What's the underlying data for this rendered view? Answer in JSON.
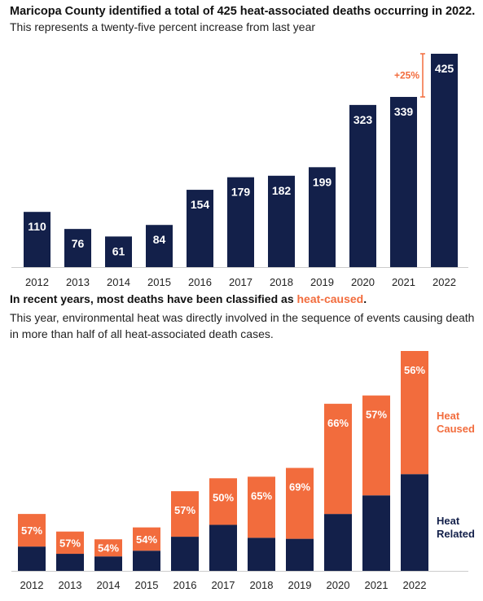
{
  "colors": {
    "navy": "#13204a",
    "orange": "#f26c3d",
    "axis": "#cccccc"
  },
  "chart_data": [
    {
      "type": "bar",
      "title": "Maricopa County identified a total of 425 heat-associated deaths occurring in 2022.",
      "subtitle": "This represents a twenty-five percent increase from last year",
      "categories": [
        "2012",
        "2013",
        "2014",
        "2015",
        "2016",
        "2017",
        "2018",
        "2019",
        "2020",
        "2021",
        "2022"
      ],
      "values": [
        110,
        76,
        61,
        84,
        154,
        179,
        182,
        199,
        323,
        339,
        425
      ],
      "ylim": [
        0,
        440
      ],
      "grid": false,
      "annotation": {
        "text": "+25%",
        "from": 339,
        "to": 425
      }
    },
    {
      "type": "bar",
      "stacked": true,
      "title_prefix": "In recent years, most deaths have been classified as ",
      "title_highlight": "heat-caused",
      "title_suffix": ".",
      "subtitle": "This year, environmental heat was directly involved in the sequence of events causing death in more than half of all heat-associated death cases.",
      "categories": [
        "2012",
        "2013",
        "2014",
        "2015",
        "2016",
        "2017",
        "2018",
        "2019",
        "2020",
        "2021",
        "2022"
      ],
      "percent_labels": [
        "57%",
        "57%",
        "54%",
        "54%",
        "57%",
        "50%",
        "65%",
        "69%",
        "66%",
        "57%",
        "56%"
      ],
      "series": [
        {
          "name": "Heat Related",
          "values": [
            47,
            33,
            28,
            39,
            66,
            89,
            64,
            62,
            110,
            146,
            187
          ]
        },
        {
          "name": "Heat Caused",
          "values": [
            63,
            43,
            33,
            45,
            88,
            90,
            118,
            137,
            213,
            193,
            238
          ]
        }
      ],
      "ylim": [
        0,
        440
      ],
      "grid": false,
      "legend_position": "right"
    }
  ]
}
